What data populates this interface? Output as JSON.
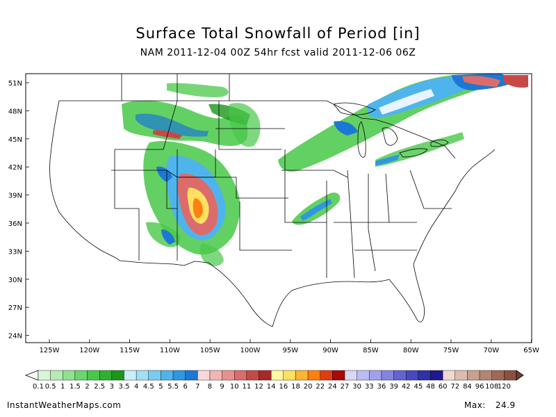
{
  "title": "Surface Total Snowfall of Period [in]",
  "subtitle": "NAM 2011-12-04 00Z 54hr fcst valid 2011-12-06 06Z",
  "footer": {
    "site": "InstantWeatherMaps.com",
    "max_label": "Max:",
    "max_value": "24.9"
  },
  "axes": {
    "lat_labels": [
      "51N",
      "48N",
      "45N",
      "42N",
      "39N",
      "36N",
      "33N",
      "30N",
      "27N",
      "24N"
    ],
    "lon_labels": [
      "125W",
      "120W",
      "115W",
      "110W",
      "105W",
      "100W",
      "95W",
      "90W",
      "85W",
      "80W",
      "75W",
      "70W",
      "65W"
    ]
  },
  "legend": {
    "labels": [
      "0.1",
      "0.5",
      "1",
      "1.5",
      "2",
      "2.5",
      "3",
      "3.5",
      "4",
      "4.5",
      "5",
      "5.5",
      "6",
      "7",
      "8",
      "9",
      "10",
      "11",
      "12",
      "14",
      "16",
      "18",
      "20",
      "22",
      "24",
      "27",
      "30",
      "33",
      "36",
      "39",
      "42",
      "45",
      "48",
      "60",
      "72",
      "84",
      "96",
      "108",
      "120"
    ],
    "colors": [
      "#d8f5d8",
      "#b4ecb4",
      "#90e090",
      "#6cd46c",
      "#48c848",
      "#30b030",
      "#1a961a",
      "#c8f0f8",
      "#a0e0f4",
      "#78ccf0",
      "#50b4ec",
      "#3096e0",
      "#1c78d4",
      "#f8d8d8",
      "#f4b4b4",
      "#e89090",
      "#dc6c6c",
      "#c84848",
      "#a82828",
      "#fff8a0",
      "#ffe060",
      "#ffb430",
      "#ff8010",
      "#e03c10",
      "#a80808",
      "#d8d8f8",
      "#bcbcf4",
      "#a0a0ec",
      "#8484e0",
      "#6464d0",
      "#4848c0",
      "#3030a8",
      "#201890",
      "#f0d8d0",
      "#dcbcb0",
      "#c8a090",
      "#b48474",
      "#a06858",
      "#8c5040"
    ]
  }
}
